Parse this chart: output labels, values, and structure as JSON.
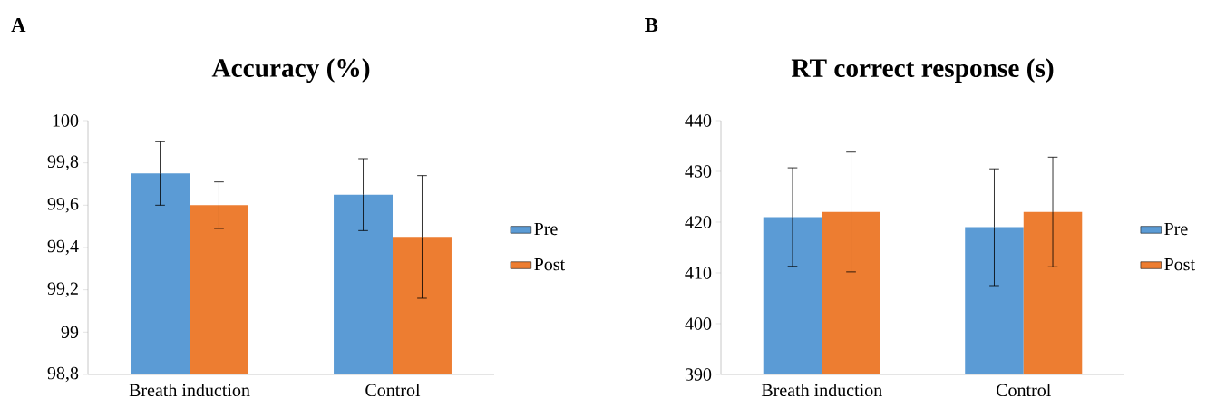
{
  "chart_data": [
    {
      "type": "bar",
      "title": "Accuracy (%)",
      "annotations": [
        "A"
      ],
      "categories": [
        "Breath induction",
        "Control"
      ],
      "series": [
        {
          "name": "Pre",
          "color": "#5b9bd5",
          "values": [
            99.75,
            99.65
          ],
          "errors": [
            0.15,
            0.17
          ]
        },
        {
          "name": "Post",
          "color": "#ed7d31",
          "values": [
            99.6,
            99.45
          ],
          "errors": [
            0.11,
            0.29
          ]
        }
      ],
      "ylim": [
        98.8,
        100
      ],
      "yticks": [
        {
          "value": 98.8,
          "label": "98,8"
        },
        {
          "value": 99,
          "label": "99"
        },
        {
          "value": 99.2,
          "label": "99,2"
        },
        {
          "value": 99.4,
          "label": "99,4"
        },
        {
          "value": 99.6,
          "label": "99,6"
        },
        {
          "value": 99.8,
          "label": "99,8"
        },
        {
          "value": 100,
          "label": "100"
        }
      ],
      "legend": "right"
    },
    {
      "type": "bar",
      "title": "RT correct response (s)",
      "annotations": [
        "B"
      ],
      "categories": [
        "Breath induction",
        "Control"
      ],
      "series": [
        {
          "name": "Pre",
          "color": "#5b9bd5",
          "values": [
            421,
            419
          ],
          "errors": [
            9.7,
            11.5
          ]
        },
        {
          "name": "Post",
          "color": "#ed7d31",
          "values": [
            422,
            422
          ],
          "errors": [
            11.8,
            10.8
          ]
        }
      ],
      "ylim": [
        390,
        440
      ],
      "yticks": [
        390,
        400,
        410,
        420,
        430,
        440
      ],
      "legend": "right"
    }
  ]
}
